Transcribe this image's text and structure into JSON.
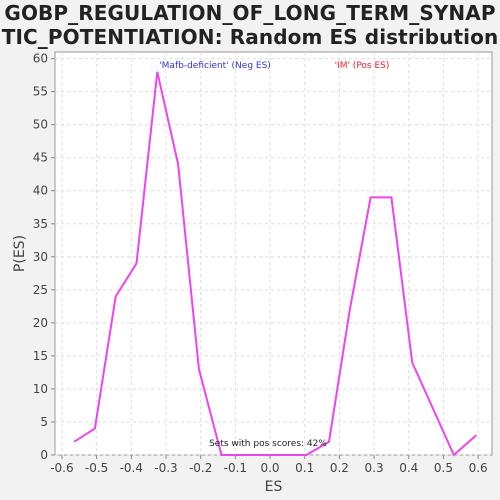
{
  "title_line1": "GOBP_REGULATION_OF_LONG_TERM_SYNAP",
  "title_line2": "TIC_POTENTIATION: Random ES distribution",
  "chart_data": {
    "type": "line",
    "xlabel": "ES",
    "ylabel": "P(ES)",
    "xlim": [
      -0.62,
      0.64
    ],
    "ylim": [
      0,
      61
    ],
    "xticks": [
      -0.6,
      -0.5,
      -0.4,
      -0.3,
      -0.2,
      -0.1,
      0.0,
      0.1,
      0.2,
      0.3,
      0.4,
      0.5,
      0.6
    ],
    "xtick_labels": [
      "-0.6",
      "-0.5",
      "-0.4",
      "-0.3",
      "-0.2",
      "-0.1",
      "0.0",
      "0.1",
      "0.2",
      "0.3",
      "0.4",
      "0.5",
      "0.6"
    ],
    "yticks": [
      0,
      5,
      10,
      15,
      20,
      25,
      30,
      35,
      40,
      45,
      50,
      55,
      60
    ],
    "grid": true,
    "series": [
      {
        "color": "#ee44ee",
        "x": [
          -0.565,
          -0.505,
          -0.445,
          -0.385,
          -0.325,
          -0.265,
          -0.205,
          -0.14,
          0.105,
          0.17,
          0.23,
          0.29,
          0.35,
          0.41,
          0.53,
          0.595
        ],
        "y": [
          2,
          4,
          24,
          29,
          58,
          44,
          13,
          0,
          0,
          2,
          22,
          39,
          39,
          14,
          0,
          3
        ]
      }
    ],
    "legend": {
      "neg_label": "'Mafb-deficient' (Neg ES)",
      "pos_label": "'IM' (Pos ES)",
      "neg_color": "#3333cc",
      "pos_color": "#e0202a"
    },
    "annotation": "Sets with pos scores: 42%"
  }
}
